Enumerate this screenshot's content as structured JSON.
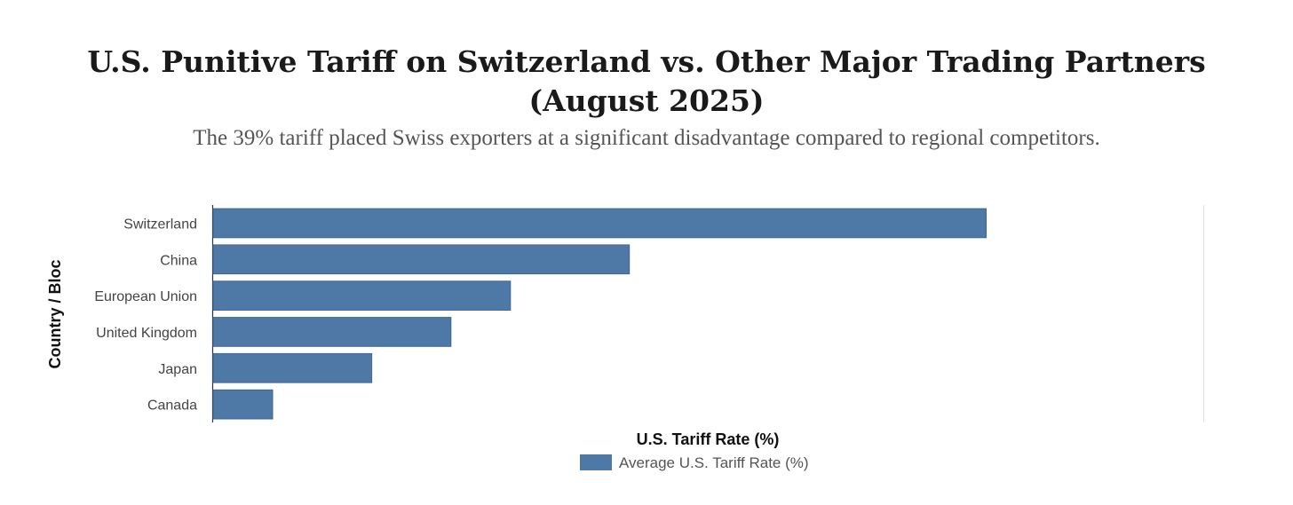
{
  "chart_data": {
    "type": "bar",
    "orientation": "horizontal",
    "title": "U.S. Punitive Tariff on Switzerland vs. Other Major Trading Partners (August 2025)",
    "subtitle": "The 39% tariff placed Swiss exporters at a significant disadvantage compared to regional competitors.",
    "xlabel": "U.S. Tariff Rate (%)",
    "ylabel": "Country / Bloc",
    "categories": [
      "Switzerland",
      "China",
      "European Union",
      "United Kingdom",
      "Japan",
      "Canada"
    ],
    "series": [
      {
        "name": "Average U.S. Tariff Rate (%)",
        "values": [
          39,
          21,
          15,
          12,
          8,
          3
        ]
      }
    ],
    "xlim": [
      0,
      50
    ],
    "x_ticks_visible": false,
    "grid": false,
    "legend": "bottom-center",
    "bar_color": "#4e79a7"
  }
}
